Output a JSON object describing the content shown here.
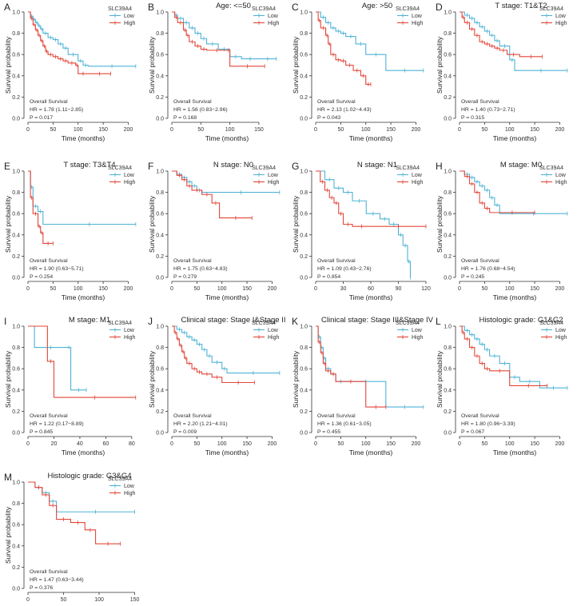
{
  "figure": {
    "x_axis_label": "Time (months)",
    "y_axis_label": "Survival probability",
    "legend_title": "SLC39A4",
    "legend_low": "Low",
    "legend_high": "High",
    "stats_title": "Overall Survival",
    "colors": {
      "low": "#4fb3d6",
      "high": "#e2473a",
      "axis": "#333333"
    }
  },
  "chart_data": [
    {
      "type": "line",
      "letter": "A",
      "title": "",
      "xlim": [
        0,
        220
      ],
      "xticks": [
        0,
        50,
        100,
        150,
        200
      ],
      "ylim": [
        0,
        1
      ],
      "yticks": [
        "0.0",
        "0.2",
        "0.4",
        "0.6",
        "0.8",
        "1.0"
      ],
      "hr": "HR = 1.78 (1.11−2.85)",
      "p": "P = 0.017",
      "series": [
        {
          "name": "Low",
          "x": [
            0,
            5,
            10,
            15,
            20,
            25,
            30,
            40,
            50,
            60,
            70,
            80,
            100,
            110,
            120,
            215
          ],
          "y": [
            1.0,
            0.96,
            0.93,
            0.9,
            0.87,
            0.84,
            0.8,
            0.76,
            0.74,
            0.7,
            0.66,
            0.6,
            0.54,
            0.5,
            0.49,
            0.49
          ]
        },
        {
          "name": "High",
          "x": [
            0,
            5,
            10,
            15,
            20,
            25,
            30,
            35,
            40,
            50,
            60,
            70,
            80,
            95,
            100,
            120,
            165
          ],
          "y": [
            1.0,
            0.94,
            0.88,
            0.83,
            0.78,
            0.73,
            0.68,
            0.63,
            0.6,
            0.58,
            0.56,
            0.54,
            0.52,
            0.5,
            0.42,
            0.42,
            0.42
          ]
        }
      ]
    },
    {
      "type": "line",
      "letter": "B",
      "title": "Age: <=50",
      "xlim": [
        0,
        190
      ],
      "xticks": [
        0,
        50,
        100,
        150
      ],
      "ylim": [
        0,
        1
      ],
      "yticks": [
        "0.0",
        "0.2",
        "0.4",
        "0.6",
        "0.8",
        "1.0"
      ],
      "hr": "HR = 1.56 (0.83−2.96)",
      "p": "P = 0.168",
      "series": [
        {
          "name": "Low",
          "x": [
            0,
            5,
            10,
            20,
            30,
            40,
            50,
            60,
            80,
            100,
            120,
            150,
            180
          ],
          "y": [
            1.0,
            0.97,
            0.94,
            0.9,
            0.85,
            0.8,
            0.75,
            0.7,
            0.65,
            0.58,
            0.56,
            0.56,
            0.56
          ]
        },
        {
          "name": "High",
          "x": [
            0,
            5,
            10,
            20,
            25,
            30,
            40,
            50,
            60,
            95,
            100,
            160
          ],
          "y": [
            1.0,
            0.95,
            0.9,
            0.83,
            0.78,
            0.72,
            0.68,
            0.65,
            0.64,
            0.64,
            0.49,
            0.49
          ]
        }
      ]
    },
    {
      "type": "line",
      "letter": "C",
      "title": "Age: >50",
      "xlim": [
        0,
        220
      ],
      "xticks": [
        0,
        50,
        100,
        150,
        200
      ],
      "ylim": [
        0,
        1
      ],
      "yticks": [
        "0.0",
        "0.2",
        "0.4",
        "0.6",
        "0.8",
        "1.0"
      ],
      "hr": "HR = 2.13 (1.02−4.43)",
      "p": "P = 0.043",
      "series": [
        {
          "name": "Low",
          "x": [
            0,
            10,
            20,
            30,
            40,
            50,
            60,
            80,
            100,
            140,
            215
          ],
          "y": [
            1.0,
            0.95,
            0.9,
            0.85,
            0.82,
            0.8,
            0.77,
            0.7,
            0.6,
            0.45,
            0.45
          ]
        },
        {
          "name": "High",
          "x": [
            0,
            5,
            10,
            20,
            25,
            30,
            40,
            50,
            60,
            75,
            90,
            100,
            110
          ],
          "y": [
            1.0,
            0.92,
            0.85,
            0.78,
            0.7,
            0.6,
            0.55,
            0.54,
            0.5,
            0.45,
            0.4,
            0.32,
            0.32
          ]
        }
      ]
    },
    {
      "type": "line",
      "letter": "D",
      "title": "T stage: T1&T2",
      "xlim": [
        0,
        220
      ],
      "xticks": [
        0,
        50,
        100,
        150,
        200
      ],
      "ylim": [
        0,
        1
      ],
      "yticks": [
        "0.0",
        "0.2",
        "0.4",
        "0.6",
        "0.8",
        "1.0"
      ],
      "hr": "HR = 1.40 (0.73−2.71)",
      "p": "P = 0.315",
      "series": [
        {
          "name": "Low",
          "x": [
            0,
            10,
            20,
            30,
            40,
            50,
            60,
            70,
            80,
            100,
            110,
            215
          ],
          "y": [
            1.0,
            0.97,
            0.94,
            0.9,
            0.86,
            0.82,
            0.78,
            0.73,
            0.68,
            0.55,
            0.45,
            0.45
          ]
        },
        {
          "name": "High",
          "x": [
            0,
            5,
            10,
            20,
            30,
            40,
            50,
            60,
            70,
            80,
            95,
            120,
            165
          ],
          "y": [
            1.0,
            0.95,
            0.9,
            0.84,
            0.78,
            0.72,
            0.7,
            0.68,
            0.66,
            0.64,
            0.6,
            0.58,
            0.58
          ]
        }
      ]
    },
    {
      "type": "line",
      "letter": "E",
      "title": "T stage: T3&T4",
      "xlim": [
        0,
        220
      ],
      "xticks": [
        0,
        50,
        100,
        150,
        200
      ],
      "ylim": [
        0,
        1
      ],
      "yticks": [
        "0.0",
        "0.2",
        "0.4",
        "0.6",
        "0.8",
        "1.0"
      ],
      "hr": "HR = 1.90 (0.63−5.71)",
      "p": "P = 0.254",
      "series": [
        {
          "name": "Low",
          "x": [
            0,
            5,
            10,
            20,
            30,
            215
          ],
          "y": [
            1.0,
            0.85,
            0.67,
            0.62,
            0.5,
            0.5
          ]
        },
        {
          "name": "High",
          "x": [
            0,
            5,
            10,
            20,
            25,
            30,
            50
          ],
          "y": [
            1.0,
            0.75,
            0.6,
            0.48,
            0.42,
            0.32,
            0.32
          ]
        }
      ]
    },
    {
      "type": "line",
      "letter": "F",
      "title": "N stage: N0",
      "xlim": [
        0,
        220
      ],
      "xticks": [
        0,
        50,
        100,
        150,
        200
      ],
      "ylim": [
        0,
        1
      ],
      "yticks": [
        "0.0",
        "0.2",
        "0.4",
        "0.6",
        "0.8",
        "1.0"
      ],
      "hr": "HR = 1.75 (0.63−4.83)",
      "p": "P = 0.279",
      "series": [
        {
          "name": "Low",
          "x": [
            0,
            10,
            20,
            30,
            40,
            50,
            60,
            215
          ],
          "y": [
            1.0,
            0.97,
            0.94,
            0.9,
            0.86,
            0.82,
            0.8,
            0.8
          ]
        },
        {
          "name": "High",
          "x": [
            0,
            10,
            20,
            30,
            40,
            60,
            80,
            95,
            160
          ],
          "y": [
            1.0,
            0.96,
            0.92,
            0.86,
            0.82,
            0.78,
            0.7,
            0.56,
            0.56
          ]
        }
      ]
    },
    {
      "type": "line",
      "letter": "G",
      "title": "N stage: N1",
      "xlim": [
        0,
        120
      ],
      "xticks": [
        0,
        30,
        60,
        90,
        120
      ],
      "ylim": [
        0,
        1
      ],
      "yticks": [
        "0.0",
        "0.2",
        "0.4",
        "0.6",
        "0.8",
        "1.0"
      ],
      "hr": "HR = 1.09 (0.43−2.76)",
      "p": "P = 0.854",
      "series": [
        {
          "name": "Low",
          "x": [
            0,
            10,
            20,
            30,
            40,
            55,
            70,
            80,
            90,
            95,
            100,
            103
          ],
          "y": [
            1.0,
            0.92,
            0.84,
            0.8,
            0.72,
            0.6,
            0.55,
            0.5,
            0.4,
            0.3,
            0.15,
            0.0
          ]
        },
        {
          "name": "High",
          "x": [
            0,
            5,
            10,
            15,
            20,
            25,
            30,
            40,
            60,
            120
          ],
          "y": [
            1.0,
            0.9,
            0.82,
            0.75,
            0.7,
            0.6,
            0.5,
            0.48,
            0.48,
            0.48
          ]
        }
      ]
    },
    {
      "type": "line",
      "letter": "H",
      "title": "M stage: M0",
      "xlim": [
        0,
        220
      ],
      "xticks": [
        0,
        50,
        100,
        150,
        200
      ],
      "ylim": [
        0,
        1
      ],
      "yticks": [
        "0.0",
        "0.2",
        "0.4",
        "0.6",
        "0.8",
        "1.0"
      ],
      "hr": "HR = 1.76 (0.68−4.54)",
      "p": "P = 0.245",
      "series": [
        {
          "name": "Low",
          "x": [
            0,
            10,
            20,
            30,
            40,
            50,
            60,
            70,
            80,
            215
          ],
          "y": [
            1.0,
            0.97,
            0.94,
            0.9,
            0.86,
            0.82,
            0.75,
            0.68,
            0.6,
            0.6
          ]
        },
        {
          "name": "High",
          "x": [
            0,
            10,
            20,
            30,
            40,
            50,
            60,
            150
          ],
          "y": [
            1.0,
            0.95,
            0.88,
            0.8,
            0.7,
            0.65,
            0.61,
            0.61
          ]
        }
      ]
    },
    {
      "type": "line",
      "letter": "I",
      "title": "M stage: M1",
      "xlim": [
        0,
        85
      ],
      "xticks": [
        0,
        20,
        40,
        60,
        80
      ],
      "ylim": [
        0,
        1
      ],
      "yticks": [
        "0.0",
        "0.2",
        "0.4",
        "0.6",
        "0.8",
        "1.0"
      ],
      "hr": "HR = 1.22 (0.17−8.89)",
      "p": "P = 0.845",
      "series": [
        {
          "name": "Low",
          "x": [
            0,
            5,
            30,
            33,
            45
          ],
          "y": [
            1.0,
            0.8,
            0.8,
            0.4,
            0.4
          ]
        },
        {
          "name": "High",
          "x": [
            0,
            15,
            20,
            83
          ],
          "y": [
            1.0,
            0.67,
            0.33,
            0.33
          ]
        }
      ]
    },
    {
      "type": "line",
      "letter": "J",
      "title": "Clinical stage: Stage I&Stage II",
      "xlim": [
        0,
        220
      ],
      "xticks": [
        0,
        50,
        100,
        150,
        200
      ],
      "ylim": [
        0,
        1
      ],
      "yticks": [
        "0.0",
        "0.2",
        "0.4",
        "0.6",
        "0.8",
        "1.0"
      ],
      "hr": "HR = 2.20 (1.21−4.01)",
      "p": "P = 0.009",
      "series": [
        {
          "name": "Low",
          "x": [
            0,
            10,
            20,
            30,
            40,
            50,
            60,
            70,
            80,
            100,
            110,
            215
          ],
          "y": [
            1.0,
            0.97,
            0.94,
            0.9,
            0.87,
            0.83,
            0.78,
            0.72,
            0.66,
            0.6,
            0.56,
            0.56
          ]
        },
        {
          "name": "High",
          "x": [
            0,
            5,
            10,
            15,
            20,
            25,
            30,
            40,
            50,
            60,
            80,
            100,
            165
          ],
          "y": [
            1.0,
            0.94,
            0.88,
            0.82,
            0.76,
            0.7,
            0.65,
            0.6,
            0.57,
            0.55,
            0.52,
            0.47,
            0.47
          ]
        }
      ]
    },
    {
      "type": "line",
      "letter": "K",
      "title": "Clinical stage: Stage III&Stage IV",
      "xlim": [
        0,
        220
      ],
      "xticks": [
        0,
        50,
        100,
        150,
        200
      ],
      "ylim": [
        0,
        1
      ],
      "yticks": [
        "0.0",
        "0.2",
        "0.4",
        "0.6",
        "0.8",
        "1.0"
      ],
      "hr": "HR = 1.36 (0.61−3.05)",
      "p": "P = 0.455",
      "series": [
        {
          "name": "Low",
          "x": [
            0,
            5,
            10,
            15,
            20,
            30,
            40,
            60,
            140,
            215
          ],
          "y": [
            1.0,
            0.9,
            0.8,
            0.7,
            0.6,
            0.55,
            0.48,
            0.48,
            0.24,
            0.24
          ]
        },
        {
          "name": "High",
          "x": [
            0,
            5,
            10,
            15,
            20,
            30,
            40,
            100,
            140
          ],
          "y": [
            1.0,
            0.85,
            0.75,
            0.65,
            0.58,
            0.55,
            0.48,
            0.24,
            0.24
          ]
        }
      ]
    },
    {
      "type": "line",
      "letter": "L",
      "title": "Histologic grade: G1&G2",
      "xlim": [
        0,
        220
      ],
      "xticks": [
        0,
        50,
        100,
        150,
        200
      ],
      "ylim": [
        0,
        1
      ],
      "yticks": [
        "0.0",
        "0.2",
        "0.4",
        "0.6",
        "0.8",
        "1.0"
      ],
      "hr": "HR = 1.80 (0.96−3.39)",
      "p": "P = 0.067",
      "series": [
        {
          "name": "Low",
          "x": [
            0,
            10,
            20,
            30,
            40,
            50,
            60,
            80,
            100,
            120,
            160,
            215
          ],
          "y": [
            1.0,
            0.96,
            0.92,
            0.88,
            0.83,
            0.78,
            0.72,
            0.65,
            0.52,
            0.48,
            0.42,
            0.42
          ]
        },
        {
          "name": "High",
          "x": [
            0,
            5,
            10,
            20,
            30,
            40,
            50,
            60,
            100,
            175
          ],
          "y": [
            1.0,
            0.94,
            0.88,
            0.8,
            0.72,
            0.65,
            0.6,
            0.58,
            0.44,
            0.44
          ]
        }
      ]
    },
    {
      "type": "line",
      "letter": "M",
      "title": "Histologic grade: G3&G4",
      "xlim": [
        0,
        155
      ],
      "xticks": [
        0,
        50,
        100,
        150
      ],
      "ylim": [
        0,
        1
      ],
      "yticks": [
        "0.0",
        "0.2",
        "0.4",
        "0.6",
        "0.8",
        "1.0"
      ],
      "hr": "HR = 1.47 (0.63−3.44)",
      "p": "P = 0.376",
      "series": [
        {
          "name": "Low",
          "x": [
            0,
            10,
            20,
            30,
            40,
            150
          ],
          "y": [
            1.0,
            0.95,
            0.9,
            0.82,
            0.72,
            0.72
          ]
        },
        {
          "name": "High",
          "x": [
            0,
            10,
            20,
            30,
            40,
            60,
            80,
            95,
            130
          ],
          "y": [
            1.0,
            0.95,
            0.88,
            0.78,
            0.65,
            0.62,
            0.55,
            0.42,
            0.42
          ]
        }
      ]
    }
  ]
}
